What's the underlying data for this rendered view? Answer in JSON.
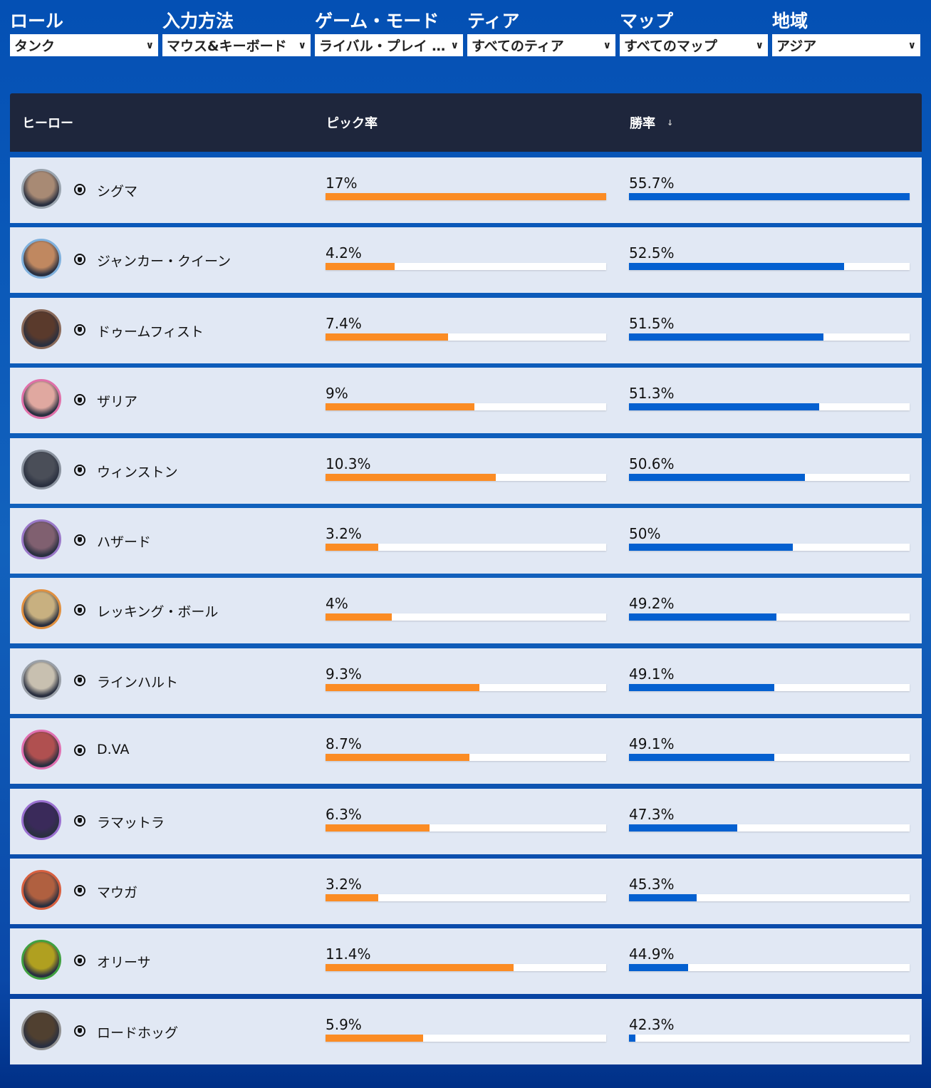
{
  "filters": [
    {
      "label": "ロール",
      "value": "タンク"
    },
    {
      "label": "入力方法",
      "value": "マウス&キーボード"
    },
    {
      "label": "ゲーム・モード",
      "value": "ライバル・プレイ …"
    },
    {
      "label": "ティア",
      "value": "すべてのティア"
    },
    {
      "label": "マップ",
      "value": "すべてのマップ"
    },
    {
      "label": "地域",
      "value": "アジア"
    }
  ],
  "header": {
    "hero": "ヒーロー",
    "pick": "ピック率",
    "win": "勝率",
    "sort_icon": "↓"
  },
  "colors": {
    "pick": "#fb8c24",
    "win": "#0460d0"
  },
  "rows": [
    {
      "name": "シグマ",
      "pick": "17%",
      "pick_v": 17,
      "win": "55.7%",
      "win_v": 55.7,
      "ring": "#9aa4ae",
      "face": "#a88a74"
    },
    {
      "name": "ジャンカー・クイーン",
      "pick": "4.2%",
      "pick_v": 4.2,
      "win": "52.5%",
      "win_v": 52.5,
      "ring": "#7fb0dc",
      "face": "#c08860"
    },
    {
      "name": "ドゥームフィスト",
      "pick": "7.4%",
      "pick_v": 7.4,
      "win": "51.5%",
      "win_v": 51.5,
      "ring": "#8a6a5a",
      "face": "#5a3a2c"
    },
    {
      "name": "ザリア",
      "pick": "9%",
      "pick_v": 9,
      "win": "51.3%",
      "win_v": 51.3,
      "ring": "#e070a8",
      "face": "#e0a8a0"
    },
    {
      "name": "ウィンストン",
      "pick": "10.3%",
      "pick_v": 10.3,
      "win": "50.6%",
      "win_v": 50.6,
      "ring": "#8a929e",
      "face": "#4a4e58"
    },
    {
      "name": "ハザード",
      "pick": "3.2%",
      "pick_v": 3.2,
      "win": "50%",
      "win_v": 50,
      "ring": "#9a78c8",
      "face": "#806070"
    },
    {
      "name": "レッキング・ボール",
      "pick": "4%",
      "pick_v": 4,
      "win": "49.2%",
      "win_v": 49.2,
      "ring": "#e09040",
      "face": "#c8b080"
    },
    {
      "name": "ラインハルト",
      "pick": "9.3%",
      "pick_v": 9.3,
      "win": "49.1%",
      "win_v": 49.1,
      "ring": "#9aa0a8",
      "face": "#c8c0b0"
    },
    {
      "name": "D.VA",
      "pick": "8.7%",
      "pick_v": 8.7,
      "win": "49.1%",
      "win_v": 49.1,
      "ring": "#e070b0",
      "face": "#b05050"
    },
    {
      "name": "ラマットラ",
      "pick": "6.3%",
      "pick_v": 6.3,
      "win": "47.3%",
      "win_v": 47.3,
      "ring": "#9a70d0",
      "face": "#3a2a5a"
    },
    {
      "name": "マウガ",
      "pick": "3.2%",
      "pick_v": 3.2,
      "win": "45.3%",
      "win_v": 45.3,
      "ring": "#d86040",
      "face": "#b06040"
    },
    {
      "name": "オリーサ",
      "pick": "11.4%",
      "pick_v": 11.4,
      "win": "44.9%",
      "win_v": 44.9,
      "ring": "#40a040",
      "face": "#b0a020"
    },
    {
      "name": "ロードホッグ",
      "pick": "5.9%",
      "pick_v": 5.9,
      "win": "42.3%",
      "win_v": 42.3,
      "ring": "#909090",
      "face": "#504030"
    }
  ]
}
